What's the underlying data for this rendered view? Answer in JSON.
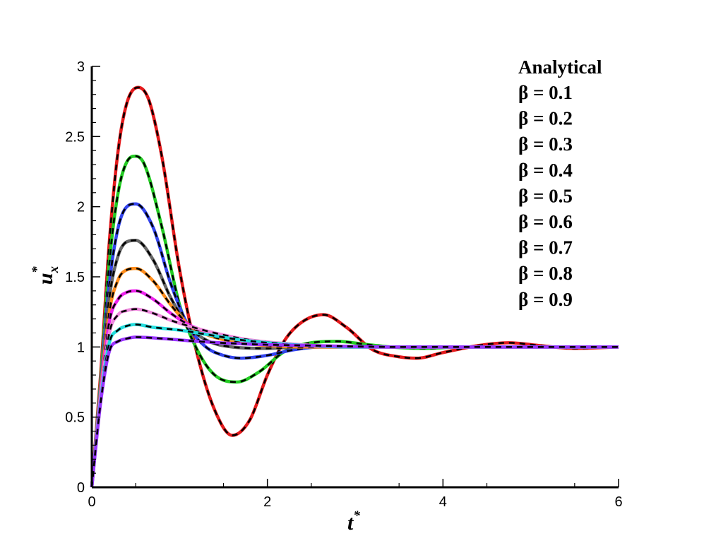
{
  "chart_data": {
    "type": "line",
    "title": "",
    "xlabel": "t",
    "xlabel_sup": "*",
    "ylabel": "u",
    "ylabel_sub": "x",
    "ylabel_sup": "*",
    "xlim": [
      0,
      6
    ],
    "ylim": [
      0,
      3
    ],
    "x_ticks": [
      0,
      2,
      4,
      6
    ],
    "x_tick_labels": [
      "0",
      "2",
      "4",
      "6"
    ],
    "y_ticks": [
      0,
      0.5,
      1,
      1.5,
      2,
      2.5,
      3
    ],
    "y_tick_labels": [
      "0",
      "0.5",
      "1",
      "1.5",
      "2",
      "2.5",
      "3"
    ],
    "grid": false,
    "legend_position": "top-right",
    "legend": {
      "analytical_label": "Analytical",
      "entries": [
        {
          "label": "β = 0.1",
          "color": "#e41a1c"
        },
        {
          "label": "β = 0.2",
          "color": "#22cc22"
        },
        {
          "label": "β = 0.3",
          "color": "#3344ee"
        },
        {
          "label": "β = 0.4",
          "color": "#666666"
        },
        {
          "label": "β = 0.5",
          "color": "#ff8c1a"
        },
        {
          "label": "β = 0.6",
          "color": "#ee22ee"
        },
        {
          "label": "β = 0.7",
          "color": "#ee88dd"
        },
        {
          "label": "β = 0.8",
          "color": "#22dddd"
        },
        {
          "label": "β = 0.9",
          "color": "#9933ff"
        }
      ]
    },
    "series": [
      {
        "name": "β = 0.1",
        "color": "#e41a1c",
        "x": [
          0,
          0.1,
          0.2,
          0.3,
          0.4,
          0.53,
          0.65,
          0.8,
          1.0,
          1.2,
          1.4,
          1.6,
          1.8,
          2.0,
          2.2,
          2.4,
          2.64,
          2.9,
          3.2,
          3.5,
          3.7,
          4.0,
          4.4,
          4.75,
          5.1,
          5.5,
          6.0
        ],
        "y": [
          0,
          0.8,
          1.75,
          2.4,
          2.74,
          2.85,
          2.76,
          2.35,
          1.55,
          0.95,
          0.55,
          0.37,
          0.48,
          0.8,
          1.05,
          1.18,
          1.23,
          1.14,
          0.98,
          0.93,
          0.92,
          0.96,
          1.01,
          1.03,
          1.01,
          0.99,
          1.0
        ]
      },
      {
        "name": "β = 0.2",
        "color": "#22cc22",
        "x": [
          0,
          0.1,
          0.2,
          0.3,
          0.4,
          0.5,
          0.6,
          0.8,
          1.0,
          1.2,
          1.4,
          1.65,
          1.9,
          2.2,
          2.5,
          2.8,
          3.1,
          3.4,
          3.8,
          4.2,
          6.0
        ],
        "y": [
          0,
          0.75,
          1.6,
          2.1,
          2.32,
          2.36,
          2.3,
          1.85,
          1.3,
          0.98,
          0.8,
          0.75,
          0.82,
          0.97,
          1.03,
          1.04,
          1.02,
          1.0,
          0.99,
          1.0,
          1.0
        ]
      },
      {
        "name": "β = 0.3",
        "color": "#3344ee",
        "x": [
          0,
          0.1,
          0.2,
          0.3,
          0.4,
          0.5,
          0.7,
          0.9,
          1.1,
          1.3,
          1.5,
          1.7,
          2.0,
          2.3,
          2.6,
          3.0,
          3.5,
          6.0
        ],
        "y": [
          0,
          0.72,
          1.45,
          1.85,
          2.0,
          2.02,
          1.85,
          1.45,
          1.15,
          1.0,
          0.94,
          0.92,
          0.94,
          0.98,
          1.0,
          1.0,
          1.0,
          1.0
        ]
      },
      {
        "name": "β = 0.4",
        "color": "#666666",
        "x": [
          0,
          0.1,
          0.2,
          0.3,
          0.4,
          0.5,
          0.7,
          0.9,
          1.1,
          1.3,
          1.6,
          2.0,
          2.4,
          3.0,
          6.0
        ],
        "y": [
          0,
          0.7,
          1.35,
          1.65,
          1.75,
          1.76,
          1.62,
          1.35,
          1.15,
          1.05,
          1.0,
          0.99,
          1.0,
          1.0,
          1.0
        ]
      },
      {
        "name": "β = 0.5",
        "color": "#ff8c1a",
        "x": [
          0,
          0.1,
          0.2,
          0.3,
          0.4,
          0.5,
          0.7,
          0.9,
          1.1,
          1.3,
          1.6,
          2.0,
          2.5,
          3.0,
          6.0
        ],
        "y": [
          0,
          0.68,
          1.25,
          1.48,
          1.55,
          1.56,
          1.47,
          1.3,
          1.16,
          1.09,
          1.04,
          1.01,
          1.0,
          1.0,
          1.0
        ]
      },
      {
        "name": "β = 0.6",
        "color": "#ee22ee",
        "x": [
          0,
          0.1,
          0.2,
          0.3,
          0.4,
          0.5,
          0.7,
          0.9,
          1.1,
          1.3,
          1.6,
          2.0,
          2.5,
          3.0,
          6.0
        ],
        "y": [
          0,
          0.66,
          1.18,
          1.34,
          1.39,
          1.4,
          1.34,
          1.24,
          1.16,
          1.11,
          1.06,
          1.03,
          1.01,
          1.0,
          1.0
        ]
      },
      {
        "name": "β = 0.7",
        "color": "#ee88dd",
        "x": [
          0,
          0.1,
          0.2,
          0.3,
          0.4,
          0.5,
          0.7,
          0.9,
          1.1,
          1.4,
          1.8,
          2.3,
          3.0,
          6.0
        ],
        "y": [
          0,
          0.64,
          1.1,
          1.23,
          1.26,
          1.27,
          1.24,
          1.19,
          1.15,
          1.1,
          1.05,
          1.02,
          1.0,
          1.0
        ]
      },
      {
        "name": "β = 0.8",
        "color": "#22dddd",
        "x": [
          0,
          0.1,
          0.2,
          0.3,
          0.4,
          0.5,
          0.7,
          1.0,
          1.3,
          1.7,
          2.2,
          3.0,
          6.0
        ],
        "y": [
          0,
          0.62,
          1.03,
          1.12,
          1.15,
          1.16,
          1.14,
          1.12,
          1.09,
          1.05,
          1.02,
          1.0,
          1.0
        ]
      },
      {
        "name": "β = 0.9",
        "color": "#9933ff",
        "x": [
          0,
          0.1,
          0.2,
          0.3,
          0.4,
          0.5,
          0.8,
          1.2,
          1.8,
          2.5,
          3.5,
          6.0
        ],
        "y": [
          0,
          0.6,
          0.97,
          1.04,
          1.06,
          1.07,
          1.06,
          1.04,
          1.02,
          1.01,
          1.0,
          1.0
        ]
      }
    ]
  }
}
